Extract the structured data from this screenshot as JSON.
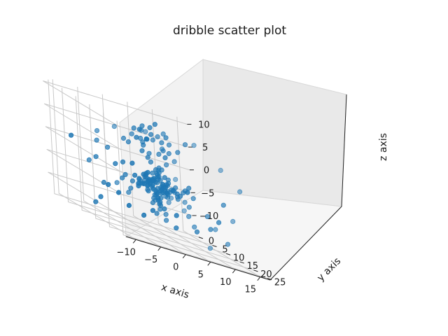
{
  "chart_data": {
    "type": "scatter",
    "projection": "3d",
    "title": "dribble scatter plot",
    "xlabel": "x axis",
    "ylabel": "y axis",
    "zlabel": "z axis",
    "xlim": [
      -12,
      17
    ],
    "ylim": [
      -2,
      26
    ],
    "zlim": [
      -14,
      11
    ],
    "xticks": [
      "−10",
      "−5",
      "0",
      "5",
      "10",
      "15"
    ],
    "yticks": [
      "0",
      "5",
      "10",
      "15",
      "20",
      "25"
    ],
    "zticks": [
      "−10",
      "−5",
      "0",
      "5",
      "10"
    ],
    "grid": true,
    "marker_color": "#1f77b4",
    "series": [
      {
        "points": [
          [
            2.1,
            12.3,
            -2.4
          ],
          [
            3.0,
            11.4,
            -3.8
          ],
          [
            1.4,
            12.9,
            -1.6
          ],
          [
            2.7,
            13.1,
            -3.1
          ],
          [
            1.9,
            11.8,
            -4.2
          ],
          [
            3.4,
            12.5,
            -2.9
          ],
          [
            2.3,
            10.9,
            -3.4
          ],
          [
            1.1,
            12.2,
            -3.0
          ],
          [
            2.9,
            13.6,
            -2.2
          ],
          [
            2.5,
            11.1,
            -1.9
          ],
          [
            1.6,
            13.4,
            -4.5
          ],
          [
            3.6,
            11.9,
            -3.6
          ],
          [
            2.0,
            12.6,
            -5.0
          ],
          [
            2.8,
            12.0,
            -1.2
          ],
          [
            1.3,
            11.5,
            -2.7
          ],
          [
            3.2,
            13.0,
            -4.1
          ],
          [
            2.4,
            14.1,
            -3.3
          ],
          [
            1.8,
            10.6,
            -2.5
          ],
          [
            3.9,
            12.7,
            -2.8
          ],
          [
            0.9,
            13.3,
            -3.7
          ],
          [
            2.6,
            12.8,
            -0.9
          ],
          [
            2.2,
            11.6,
            -5.4
          ],
          [
            3.3,
            11.2,
            -1.8
          ],
          [
            1.5,
            14.0,
            -2.1
          ],
          [
            2.9,
            10.8,
            -4.6
          ],
          [
            1.7,
            12.1,
            -0.6
          ],
          [
            3.7,
            13.5,
            -3.9
          ],
          [
            1.2,
            10.9,
            -4.0
          ],
          [
            2.0,
            14.4,
            -3.5
          ],
          [
            3.1,
            12.2,
            -5.6
          ],
          [
            4.1,
            11.6,
            -3.2
          ],
          [
            0.7,
            12.4,
            -2.3
          ],
          [
            2.3,
            13.8,
            -1.4
          ],
          [
            2.7,
            10.4,
            -2.6
          ],
          [
            3.5,
            14.2,
            -2.0
          ],
          [
            1.0,
            11.2,
            -4.8
          ],
          [
            2.4,
            12.4,
            -6.2
          ],
          [
            1.8,
            13.7,
            -0.4
          ],
          [
            3.8,
            10.9,
            -4.3
          ],
          [
            4.4,
            12.9,
            -1.7
          ],
          [
            0.5,
            13.9,
            -3.2
          ],
          [
            2.1,
            9.8,
            -3.0
          ],
          [
            2.9,
            14.8,
            -3.6
          ],
          [
            1.4,
            12.6,
            -6.0
          ],
          [
            3.2,
            11.8,
            -0.2
          ],
          [
            4.6,
            12.1,
            -4.4
          ],
          [
            0.3,
            11.7,
            -2.0
          ],
          [
            2.6,
            15.0,
            -2.4
          ],
          [
            1.6,
            9.9,
            -1.5
          ],
          [
            3.5,
            10.2,
            -5.2
          ],
          [
            2.2,
            13.2,
            -6.8
          ],
          [
            4.0,
            14.0,
            -3.4
          ],
          [
            0.8,
            10.3,
            -3.9
          ],
          [
            1.9,
            15.2,
            -1.9
          ],
          [
            3.0,
            9.6,
            -2.7
          ],
          [
            4.8,
            11.4,
            -2.4
          ],
          [
            0.2,
            13.0,
            -4.7
          ],
          [
            2.5,
            11.9,
            0.3
          ],
          [
            1.2,
            14.6,
            -5.3
          ],
          [
            3.9,
            13.8,
            -0.8
          ],
          [
            5.1,
            12.6,
            -3.0
          ],
          [
            -0.1,
            12.2,
            -3.4
          ],
          [
            2.8,
            8.9,
            -3.8
          ],
          [
            2.0,
            16.0,
            -3.2
          ],
          [
            1.5,
            12.0,
            -7.2
          ],
          [
            3.3,
            12.7,
            0.8
          ],
          [
            4.5,
            10.0,
            -4.9
          ],
          [
            0.4,
            14.9,
            -1.6
          ],
          [
            5.4,
            13.6,
            -2.1
          ],
          [
            -0.5,
            11.0,
            -2.9
          ],
          [
            2.4,
            8.2,
            -2.2
          ],
          [
            1.7,
            16.6,
            -4.1
          ],
          [
            3.6,
            11.0,
            -7.5
          ],
          [
            2.3,
            13.5,
            1.2
          ],
          [
            4.9,
            15.1,
            -3.7
          ],
          [
            0.0,
            9.7,
            -4.3
          ],
          [
            5.9,
            11.8,
            -3.3
          ],
          [
            -0.9,
            13.8,
            -2.5
          ],
          [
            3.1,
            7.6,
            -3.6
          ],
          [
            1.3,
            17.2,
            -2.8
          ],
          [
            2.7,
            12.4,
            -8.1
          ],
          [
            1.9,
            11.3,
            1.6
          ],
          [
            6.2,
            12.9,
            -4.6
          ],
          [
            -1.3,
            12.5,
            -3.7
          ],
          [
            2.2,
            7.1,
            -4.5
          ],
          [
            2.6,
            17.9,
            -2.0
          ],
          [
            4.2,
            9.1,
            -6.4
          ],
          [
            0.6,
            15.7,
            0.2
          ],
          [
            6.6,
            14.2,
            -2.6
          ],
          [
            -1.6,
            10.5,
            -4.0
          ],
          [
            3.4,
            6.5,
            -2.9
          ],
          [
            1.1,
            18.4,
            -3.9
          ],
          [
            3.0,
            13.9,
            -8.6
          ],
          [
            2.0,
            10.1,
            2.2
          ],
          [
            5.6,
            9.4,
            -1.3
          ],
          [
            -0.3,
            16.3,
            -5.7
          ],
          [
            7.0,
            11.2,
            -3.8
          ],
          [
            -2.0,
            14.3,
            -2.7
          ],
          [
            4.0,
            5.9,
            -4.7
          ],
          [
            0.8,
            19.1,
            -2.4
          ],
          [
            2.4,
            11.6,
            -9.4
          ],
          [
            3.2,
            14.7,
            2.6
          ],
          [
            6.8,
            15.8,
            -5.1
          ],
          [
            -2.3,
            9.2,
            -3.3
          ],
          [
            1.7,
            5.4,
            -3.5
          ],
          [
            3.9,
            19.6,
            -3.6
          ],
          [
            5.0,
            8.3,
            -7.3
          ],
          [
            -1.0,
            16.9,
            -1.2
          ],
          [
            7.5,
            13.3,
            -2.2
          ],
          [
            -2.7,
            11.7,
            -5.5
          ],
          [
            4.6,
            5.0,
            -2.1
          ],
          [
            0.3,
            20.2,
            -4.6
          ],
          [
            3.6,
            12.8,
            -10.1
          ],
          [
            1.5,
            9.0,
            3.1
          ],
          [
            8.0,
            10.5,
            -4.2
          ],
          [
            -3.0,
            15.6,
            -2.3
          ],
          [
            2.9,
            4.4,
            -5.8
          ],
          [
            1.2,
            21.0,
            -1.8
          ],
          [
            5.8,
            17.3,
            -6.9
          ],
          [
            -1.9,
            7.8,
            -0.9
          ],
          [
            8.4,
            14.6,
            -3.1
          ],
          [
            -3.4,
            10.0,
            -4.1
          ],
          [
            4.3,
            3.9,
            -3.0
          ],
          [
            0.0,
            21.7,
            -3.2
          ],
          [
            6.4,
            7.2,
            -8.7
          ],
          [
            -0.6,
            18.6,
            1.6
          ],
          [
            9.0,
            12.0,
            -1.6
          ],
          [
            -4.0,
            13.2,
            -6.3
          ],
          [
            2.5,
            3.2,
            -1.4
          ],
          [
            2.1,
            22.5,
            -5.0
          ],
          [
            7.2,
            16.6,
            -9.0
          ],
          [
            -2.8,
            6.6,
            -2.0
          ],
          [
            1.0,
            12.5,
            3.6
          ],
          [
            2.6,
            13.2,
            4.2
          ],
          [
            0.4,
            11.6,
            4.9
          ],
          [
            3.1,
            14.0,
            5.4
          ],
          [
            -0.4,
            12.9,
            5.8
          ],
          [
            1.7,
            10.7,
            6.3
          ],
          [
            3.8,
            12.3,
            6.8
          ],
          [
            0.9,
            14.4,
            7.2
          ],
          [
            2.3,
            11.2,
            7.7
          ],
          [
            -1.2,
            13.6,
            6.6
          ],
          [
            4.4,
            13.7,
            5.1
          ],
          [
            1.4,
            15.3,
            8.4
          ],
          [
            -0.8,
            10.6,
            7.9
          ],
          [
            2.9,
            9.8,
            8.9
          ],
          [
            3.5,
            15.6,
            7.4
          ],
          [
            0.1,
            12.1,
            9.2
          ],
          [
            5.0,
            11.8,
            8.1
          ],
          [
            -1.7,
            15.0,
            8.7
          ],
          [
            2.0,
            16.4,
            9.6
          ],
          [
            4.2,
            9.4,
            9.9
          ],
          [
            -2.5,
            11.4,
            4.6
          ],
          [
            6.1,
            13.9,
            6.0
          ],
          [
            1.1,
            7.9,
            5.5
          ],
          [
            3.3,
            17.6,
            4.4
          ],
          [
            -3.2,
            14.1,
            7.1
          ],
          [
            5.5,
            10.2,
            3.3
          ],
          [
            0.6,
            18.2,
            6.5
          ],
          [
            6.9,
            15.4,
            8.5
          ],
          [
            -4.1,
            12.6,
            5.3
          ],
          [
            2.4,
            6.8,
            7.3
          ],
          [
            -6.5,
            10.8,
            1.9
          ],
          [
            -8.0,
            9.0,
            -1.3
          ],
          [
            -7.2,
            14.9,
            -4.6
          ],
          [
            -9.4,
            12.2,
            3.0
          ],
          [
            -5.8,
            7.4,
            -6.8
          ],
          [
            -10.3,
            10.6,
            -2.2
          ],
          [
            10.6,
            15.5,
            -6.0
          ],
          [
            12.4,
            13.1,
            -9.1
          ],
          [
            9.8,
            19.7,
            -7.6
          ],
          [
            11.5,
            9.6,
            -11.2
          ],
          [
            13.2,
            17.8,
            -10.4
          ],
          [
            8.7,
            7.0,
            -12.2
          ],
          [
            7.6,
            21.4,
            -11.8
          ],
          [
            10.1,
            4.8,
            -9.8
          ],
          [
            6.3,
            3.0,
            -10.6
          ],
          [
            4.9,
            2.1,
            -12.4
          ],
          [
            12.8,
            20.9,
            -4.4
          ],
          [
            -2.2,
            2.4,
            -7.9
          ],
          [
            0.5,
            1.2,
            -9.2
          ],
          [
            2.8,
            0.6,
            -11.5
          ],
          [
            -4.8,
            4.1,
            -10.8
          ],
          [
            -6.7,
            5.6,
            -12.0
          ],
          [
            14.6,
            14.4,
            -2.6
          ],
          [
            15.3,
            11.0,
            -7.4
          ],
          [
            11.9,
            6.1,
            -3.7
          ],
          [
            -11.2,
            15.8,
            5.8
          ],
          [
            -8.8,
            18.0,
            8.3
          ],
          [
            -3.9,
            20.6,
            9.7
          ],
          [
            4.6,
            22.9,
            10.3
          ],
          [
            9.3,
            23.8,
            6.7
          ],
          [
            13.9,
            22.1,
            2.9
          ],
          [
            -0.2,
            24.1,
            1.7
          ],
          [
            6.7,
            1.3,
            4.6
          ],
          [
            -9.9,
            3.6,
            0.8
          ]
        ]
      }
    ]
  }
}
